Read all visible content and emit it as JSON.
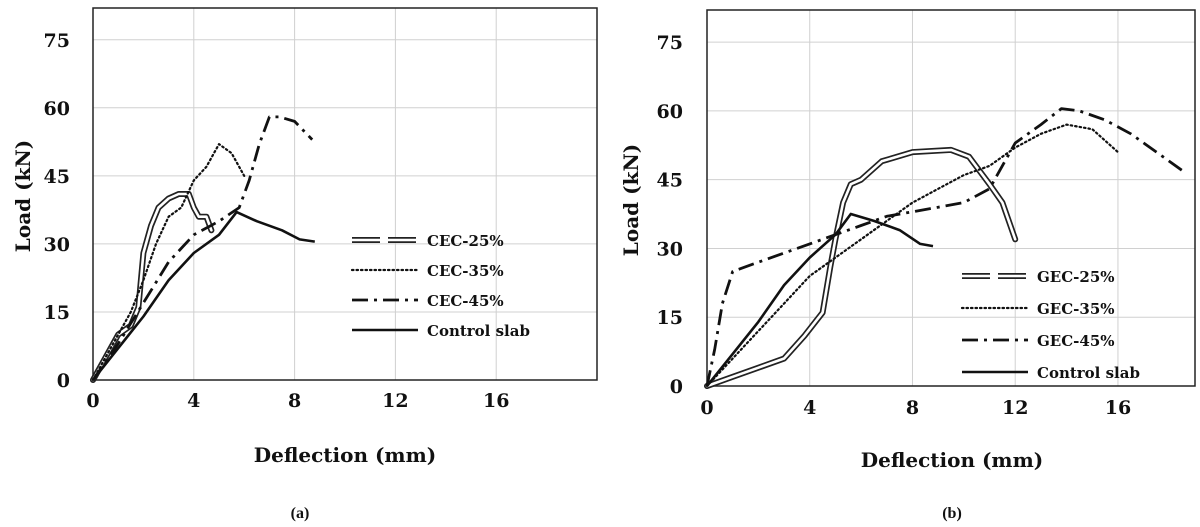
{
  "chart_data": [
    {
      "type": "line",
      "caption": "(a)",
      "xlabel": "Deflection (mm)",
      "ylabel": "Load (kN)",
      "xlim": [
        0,
        20
      ],
      "ylim": [
        0,
        82
      ],
      "xticks": [
        "0",
        "4",
        "8",
        "12",
        "16"
      ],
      "yticks": [
        "0",
        "15",
        "30",
        "45",
        "60",
        "75"
      ],
      "grid": true,
      "legend_position": "right-middle",
      "series": [
        {
          "name": "CEC-25%",
          "style": "double",
          "x": [
            0,
            0.5,
            1.0,
            1.5,
            1.8,
            2.0,
            2.3,
            2.6,
            3.0,
            3.4,
            3.8,
            4.0,
            4.2,
            4.5,
            4.7
          ],
          "y": [
            0,
            5,
            10,
            12,
            16,
            28,
            34,
            38,
            40,
            41,
            41,
            38,
            36,
            36,
            33
          ]
        },
        {
          "name": "CEC-35%",
          "style": "dotted",
          "x": [
            0,
            0.5,
            1.0,
            1.5,
            2.0,
            2.5,
            3.0,
            3.5,
            4.0,
            4.5,
            5.0,
            5.5,
            6.0
          ],
          "y": [
            0,
            5,
            10,
            15,
            22,
            30,
            36,
            38,
            44,
            47,
            52,
            50,
            45
          ]
        },
        {
          "name": "CEC-45%",
          "style": "dashdot",
          "x": [
            0,
            1.0,
            2.0,
            3.0,
            4.0,
            5.0,
            5.8,
            6.2,
            6.6,
            7.0,
            7.4,
            8.0,
            8.7
          ],
          "y": [
            0,
            8,
            17,
            26,
            32,
            35,
            38,
            44,
            52,
            58,
            58,
            57,
            53
          ]
        },
        {
          "name": "Control slab",
          "style": "solid",
          "x": [
            0,
            1.0,
            2.0,
            3.0,
            4.0,
            5.0,
            5.7,
            6.5,
            7.5,
            8.2,
            8.8
          ],
          "y": [
            0,
            7,
            14,
            22,
            28,
            32,
            37,
            35,
            33,
            31,
            30.5
          ]
        }
      ]
    },
    {
      "type": "line",
      "caption": "(b)",
      "xlabel": "Deflection (mm)",
      "ylabel": "Load (kN)",
      "xlim": [
        0,
        19
      ],
      "ylim": [
        0,
        82
      ],
      "xticks": [
        "0",
        "4",
        "8",
        "12",
        "16"
      ],
      "yticks": [
        "0",
        "15",
        "30",
        "45",
        "60",
        "75"
      ],
      "grid": true,
      "legend_position": "right-lower",
      "series": [
        {
          "name": "GEC-25%",
          "style": "double",
          "x": [
            0,
            1.0,
            2.0,
            3.0,
            3.8,
            4.5,
            4.8,
            5.0,
            5.3,
            5.6,
            6.0,
            6.8,
            8.0,
            9.5,
            10.2,
            10.6,
            11.0,
            11.5,
            12.0
          ],
          "y": [
            0,
            2,
            4,
            6,
            11,
            16,
            26,
            32,
            40,
            44,
            45,
            49,
            51,
            51.5,
            50,
            47,
            44,
            40,
            32
          ]
        },
        {
          "name": "GEC-35%",
          "style": "dotted",
          "x": [
            0,
            1.0,
            2.0,
            3.0,
            4.0,
            5.0,
            6.0,
            7.0,
            8.0,
            9.0,
            10.0,
            11.0,
            12.0,
            13.0,
            14.0,
            15.0,
            16.0
          ],
          "y": [
            0,
            6,
            12,
            18,
            24,
            28,
            32,
            36,
            40,
            43,
            46,
            48,
            52,
            55,
            57,
            56,
            51
          ]
        },
        {
          "name": "GEC-45%",
          "style": "dashdot",
          "x": [
            0,
            0.3,
            0.6,
            1.0,
            2.0,
            3.0,
            4.0,
            5.0,
            6.0,
            7.0,
            8.0,
            9.0,
            10.0,
            11.0,
            12.0,
            13.0,
            13.8,
            14.5,
            15.5,
            16.5,
            17.5,
            18.5
          ],
          "y": [
            0,
            8,
            18,
            25,
            27,
            29,
            31,
            33,
            35,
            37,
            38,
            39,
            40,
            43,
            53,
            57,
            60.5,
            60,
            58,
            55,
            51,
            47
          ]
        },
        {
          "name": "Control slab",
          "style": "solid",
          "x": [
            0,
            1.0,
            2.0,
            3.0,
            4.0,
            5.0,
            5.6,
            6.5,
            7.5,
            8.3,
            8.8
          ],
          "y": [
            0,
            7,
            14,
            22,
            28,
            33,
            37.5,
            36,
            34,
            31,
            30.5
          ]
        }
      ]
    }
  ]
}
